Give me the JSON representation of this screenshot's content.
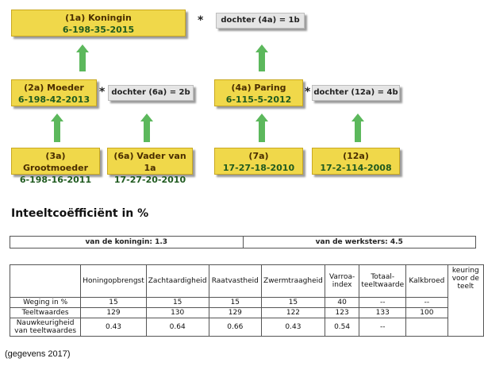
{
  "pedigree": {
    "koningin": {
      "name": "(1a) Koningin",
      "code": "6-198-35-2015"
    },
    "moeder": {
      "name": "(2a) Moeder",
      "code": "6-198-42-2013"
    },
    "paring": {
      "name": "(4a) Paring",
      "code": "6-115-5-2012"
    },
    "grootmoeder": {
      "name": "(3a) Grootmoeder",
      "code": "6-198-16-2011"
    },
    "vader": {
      "name": "(6a) Vader van 1a",
      "code": "17-27-20-2010"
    },
    "p7a": {
      "name": "(7a)",
      "code": "17-27-18-2010"
    },
    "p12a": {
      "name": "(12a)",
      "code": "17-2-114-2008"
    },
    "dochter_4a": "dochter (4a) = 1b",
    "dochter_6a": "dochter (6a) = 2b",
    "dochter_12a": "dochter (12a) = 4b",
    "star": "*"
  },
  "inteelt": {
    "title": "Inteeltcoëfficiënt in %",
    "koningin": "van de koningin: 1.3",
    "werksters": "van de werksters: 4.5"
  },
  "table": {
    "headers": [
      "Honingopbrengst",
      "Zachtaardigheid",
      "Raatvastheid",
      "Zwermtraagheid",
      "Varroa-index",
      "Totaal-teeltwaarde",
      "Kalkbroed",
      "keuring voor de teelt"
    ],
    "rows": [
      {
        "label": "Weging in %",
        "values": [
          "15",
          "15",
          "15",
          "15",
          "40",
          "--",
          "--"
        ]
      },
      {
        "label": "Teeltwaardes",
        "values": [
          "129",
          "130",
          "129",
          "122",
          "123",
          "133",
          "100"
        ]
      },
      {
        "label": "Nauwkeurigheid van teeltwaardes",
        "values": [
          "0.43",
          "0.64",
          "0.66",
          "0.43",
          "0.54",
          "--",
          ""
        ]
      }
    ]
  },
  "footer": "(gegevens 2017)",
  "colors": {
    "yellow_box": "#f0d84a",
    "arrow_green": "#5cb85c",
    "grey_box": "#e5e5e5"
  }
}
